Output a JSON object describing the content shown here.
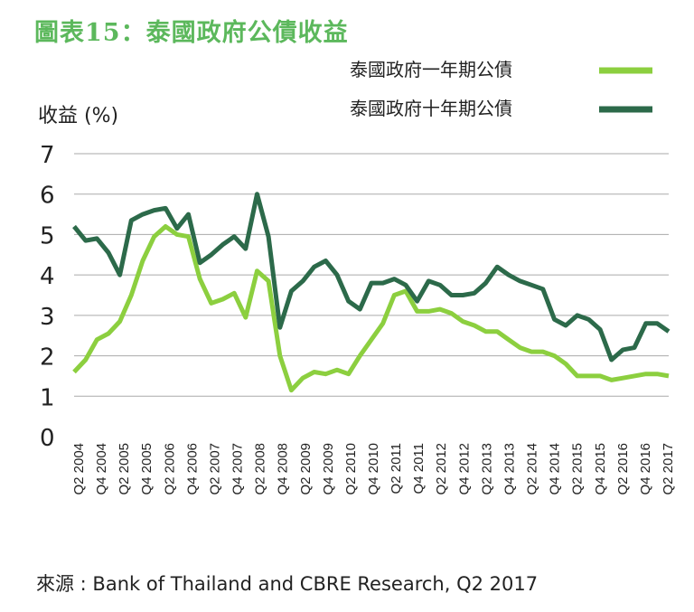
{
  "title": "圖表15：泰國政府公債收益",
  "source": "來源 : Bank of Thailand and CBRE Research, Q2 2017",
  "colors": {
    "title": "#5cb85c",
    "one_year": "#8ccf3f",
    "ten_year": "#2c6a4a",
    "grid": "#aaaaaa"
  },
  "chart_data": {
    "type": "line",
    "ylabel": "收益 (%)",
    "xlabel": "",
    "ylim": [
      0,
      7
    ],
    "yticks": [
      "0",
      "1",
      "2",
      "3",
      "4",
      "5",
      "6",
      "7"
    ],
    "grid": true,
    "legend_position": "top-right",
    "xtick_labels": [
      "Q2 2004",
      "Q4 2004",
      "Q2 2005",
      "Q4 2005",
      "Q2 2006",
      "Q4 2006",
      "Q2 2007",
      "Q4 2007",
      "Q2 2008",
      "Q4 2008",
      "Q2 2009",
      "Q4 2009",
      "Q2 2010",
      "Q4 2010",
      "Q2 2011",
      "Q4 2011",
      "Q2 2012",
      "Q4 2012",
      "Q2 2013",
      "Q4 2013",
      "Q2 2014",
      "Q4 2014",
      "Q2 2015",
      "Q4 2015",
      "Q2 2016",
      "Q4 2016",
      "Q2 2017"
    ],
    "series": [
      {
        "name": "泰國政府一年期公債",
        "values": [
          1.6,
          1.9,
          2.4,
          2.55,
          2.85,
          3.5,
          4.35,
          4.95,
          5.2,
          5.0,
          4.95,
          3.9,
          3.3,
          3.4,
          3.55,
          2.95,
          4.1,
          3.85,
          2.0,
          1.15,
          1.45,
          1.6,
          1.55,
          1.65,
          1.55,
          2.0,
          2.4,
          2.8,
          3.5,
          3.6,
          3.1,
          3.1,
          3.15,
          3.05,
          2.85,
          2.75,
          2.6,
          2.6,
          2.4,
          2.2,
          2.1,
          2.1,
          2.0,
          1.8,
          1.5,
          1.5,
          1.5,
          1.4,
          1.45,
          1.5,
          1.55,
          1.55,
          1.5
        ]
      },
      {
        "name": "泰國政府十年期公債",
        "values": [
          5.2,
          4.85,
          4.9,
          4.55,
          4.0,
          5.35,
          5.5,
          5.6,
          5.65,
          5.15,
          5.5,
          4.3,
          4.5,
          4.75,
          4.95,
          4.65,
          6.0,
          4.95,
          2.7,
          3.6,
          3.85,
          4.2,
          4.35,
          4.0,
          3.35,
          3.15,
          3.8,
          3.8,
          3.9,
          3.75,
          3.35,
          3.85,
          3.75,
          3.5,
          3.5,
          3.55,
          3.8,
          4.2,
          4.0,
          3.85,
          3.75,
          3.65,
          2.9,
          2.75,
          3.0,
          2.9,
          2.65,
          1.9,
          2.15,
          2.2,
          2.8,
          2.8,
          2.6
        ]
      }
    ]
  }
}
